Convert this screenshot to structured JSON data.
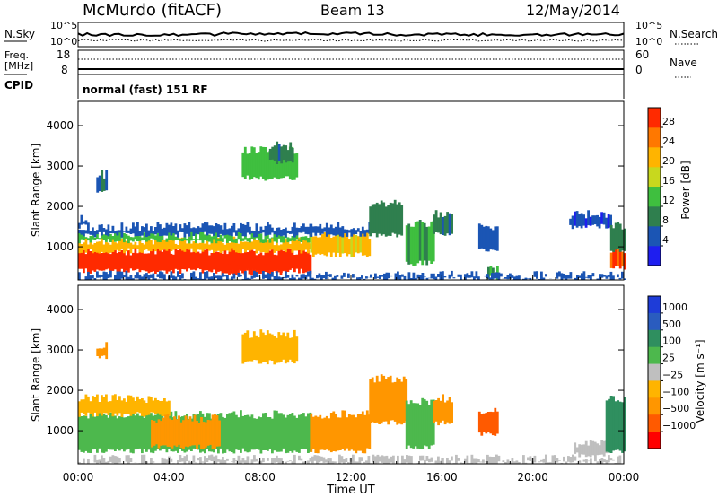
{
  "header": {
    "station": "McMurdo (fitACF)",
    "beam": "Beam 13",
    "date": "12/May/2014",
    "mode": "normal (fast) 151 RF"
  },
  "top_panels": {
    "nsky_label": "N.Sky",
    "nsearch_label": "N.Search",
    "noise_ticks": [
      "10^5",
      "10^0"
    ],
    "noise_ticks_right": [
      "10^5",
      "10^0"
    ],
    "freq_label_1": "Freq.",
    "freq_label_2": "[MHz]",
    "freq_ticks": [
      "18",
      "8"
    ],
    "nave_label": "Nave",
    "nave_ticks": [
      "60",
      "0"
    ],
    "cpid_label": "CPID"
  },
  "colors": {
    "power": [
      "#1e1ef0",
      "#1b55b4",
      "#2f7f4e",
      "#3fbf3f",
      "#c8d81e",
      "#ffb400",
      "#ff7800",
      "#ff2a00"
    ],
    "velocity": [
      "#ff0000",
      "#ff5a00",
      "#ff9600",
      "#ffb400",
      "#bfbfbf",
      "#4db84d",
      "#2f8f5f",
      "#2a5cbf",
      "#1e3cd8"
    ],
    "ground_scatter": "#a0a0a0"
  },
  "chart_data": [
    {
      "type": "heatmap",
      "name": "power",
      "ylabel": "Slant Range [km]",
      "xlabel": "",
      "xticks": [
        "00:00",
        "04:00",
        "08:00",
        "12:00",
        "16:00",
        "20:00",
        "00:00"
      ],
      "x_hours": [
        0,
        4,
        8,
        12,
        16,
        20,
        24
      ],
      "yticks": [
        1000,
        2000,
        3000,
        4000
      ],
      "ylim": [
        180,
        4600
      ],
      "colorbar_label": "Power [dB]",
      "colorbar_ticks": [
        "4",
        "8",
        "12",
        "16",
        "20",
        "24",
        "28"
      ],
      "colorbar_values": [
        4,
        8,
        12,
        16,
        20,
        24,
        28
      ],
      "colorbar_range": [
        0,
        32
      ],
      "regions": [
        {
          "x": [
            0.0,
            10.2
          ],
          "y": [
            400,
            900
          ],
          "value": 30
        },
        {
          "x": [
            0.0,
            10.2
          ],
          "y": [
            900,
            1150
          ],
          "value": 22
        },
        {
          "x": [
            0.0,
            10.2
          ],
          "y": [
            1150,
            1300
          ],
          "value": 14
        },
        {
          "x": [
            0.0,
            10.2
          ],
          "y": [
            1300,
            1500
          ],
          "value": 6
        },
        {
          "x": [
            0.0,
            0.3
          ],
          "y": [
            1500,
            1700
          ],
          "value": 6
        },
        {
          "x": [
            6.2,
            9.0
          ],
          "y": [
            350,
            650
          ],
          "value": 30
        },
        {
          "x": [
            10.2,
            12.8
          ],
          "y": [
            800,
            1300
          ],
          "value": 21
        },
        {
          "x": [
            10.2,
            12.8
          ],
          "y": [
            1300,
            1500
          ],
          "value": 6
        },
        {
          "x": [
            12.8,
            14.2
          ],
          "y": [
            1300,
            2100
          ],
          "value": 10
        },
        {
          "x": [
            14.4,
            15.6
          ],
          "y": [
            600,
            1600
          ],
          "value": 12
        },
        {
          "x": [
            15.6,
            16.4
          ],
          "y": [
            1300,
            1800
          ],
          "value": 9
        },
        {
          "x": [
            17.6,
            18.4
          ],
          "y": [
            900,
            1500
          ],
          "value": 6
        },
        {
          "x": [
            18.0,
            18.4
          ],
          "y": [
            250,
            420
          ],
          "value": 12
        },
        {
          "x": [
            21.6,
            23.4
          ],
          "y": [
            1500,
            1800
          ],
          "value": 5
        },
        {
          "x": [
            23.4,
            24.0
          ],
          "y": [
            500,
            900
          ],
          "value": 28
        },
        {
          "x": [
            23.4,
            24.0
          ],
          "y": [
            900,
            1500
          ],
          "value": 10
        },
        {
          "x": [
            0.0,
            24.0
          ],
          "y": [
            200,
            300
          ],
          "value": 6
        },
        {
          "x": [
            0.8,
            1.2
          ],
          "y": [
            2400,
            2800
          ],
          "value": 8
        },
        {
          "x": [
            7.2,
            9.6
          ],
          "y": [
            2700,
            3400
          ],
          "value": 14
        },
        {
          "x": [
            8.4,
            9.4
          ],
          "y": [
            3100,
            3500
          ],
          "value": 9
        }
      ]
    },
    {
      "type": "heatmap",
      "name": "velocity",
      "ylabel": "Slant Range [km]",
      "xlabel": "Time UT",
      "xticks": [
        "00:00",
        "04:00",
        "08:00",
        "12:00",
        "16:00",
        "20:00",
        "00:00"
      ],
      "x_hours": [
        0,
        4,
        8,
        12,
        16,
        20,
        24
      ],
      "yticks": [
        1000,
        2000,
        3000,
        4000
      ],
      "ylim": [
        180,
        4600
      ],
      "colorbar_label": "Velocity [m s⁻¹]",
      "colorbar_ticks": [
        "1000",
        "500",
        "100",
        "25",
        "−25",
        "−100",
        "−500",
        "−1000"
      ],
      "regions": [
        {
          "x": [
            0.0,
            10.2
          ],
          "y": [
            500,
            1400
          ],
          "value": 60
        },
        {
          "x": [
            0.0,
            4.0
          ],
          "y": [
            1400,
            1800
          ],
          "value": -80
        },
        {
          "x": [
            3.2,
            6.2
          ],
          "y": [
            600,
            1300
          ],
          "value": -150
        },
        {
          "x": [
            10.2,
            12.8
          ],
          "y": [
            500,
            1400
          ],
          "value": -150
        },
        {
          "x": [
            12.8,
            14.4
          ],
          "y": [
            1200,
            2300
          ],
          "value": -300
        },
        {
          "x": [
            14.4,
            15.6
          ],
          "y": [
            600,
            1700
          ],
          "value": 40
        },
        {
          "x": [
            15.6,
            16.4
          ],
          "y": [
            1200,
            1800
          ],
          "value": -150
        },
        {
          "x": [
            17.6,
            18.4
          ],
          "y": [
            900,
            1500
          ],
          "value": -700
        },
        {
          "x": [
            21.8,
            23.2
          ],
          "y": [
            400,
            700
          ],
          "value": 10
        },
        {
          "x": [
            23.2,
            24.0
          ],
          "y": [
            500,
            1800
          ],
          "value": 150
        },
        {
          "x": [
            0.0,
            24.0
          ],
          "y": [
            200,
            300
          ],
          "value": 10
        },
        {
          "x": [
            7.2,
            9.6
          ],
          "y": [
            2700,
            3400
          ],
          "value": -80
        },
        {
          "x": [
            0.8,
            1.2
          ],
          "y": [
            2800,
            3100
          ],
          "value": -200
        }
      ]
    }
  ]
}
